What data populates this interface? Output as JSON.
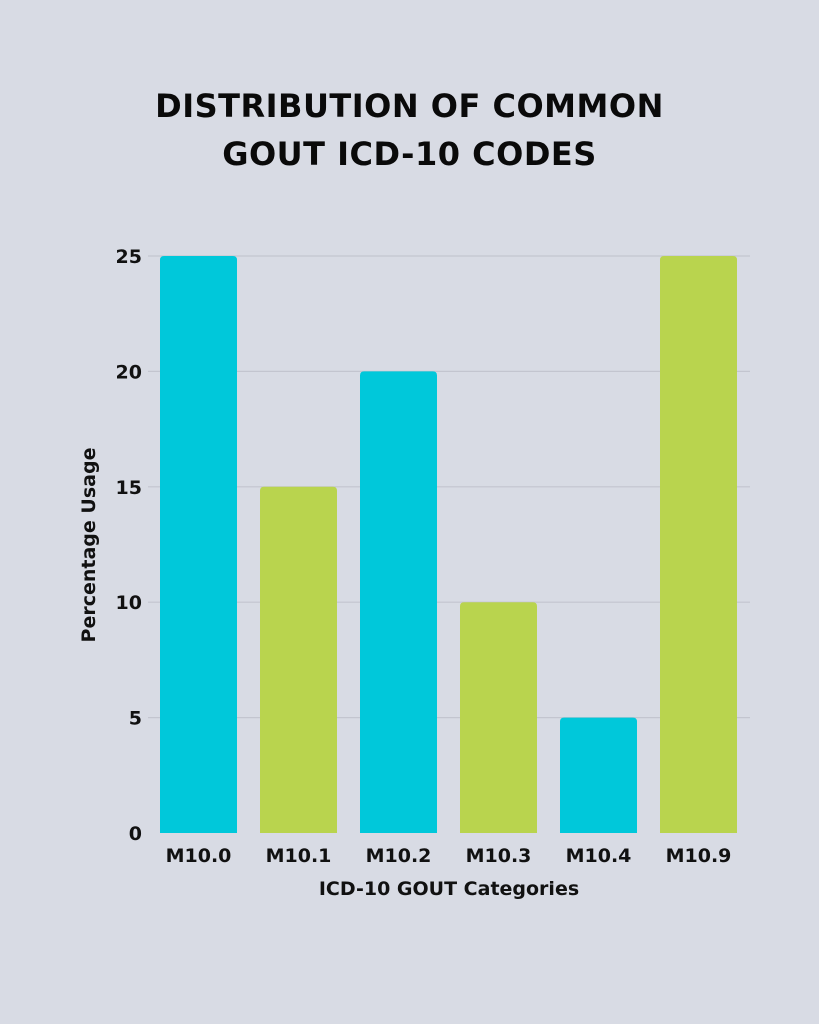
{
  "chart_data": {
    "type": "bar",
    "title_lines": [
      "DISTRIBUTION OF COMMON",
      "GOUT ICD-10 CODES"
    ],
    "xlabel": "ICD-10 GOUT Categories",
    "ylabel": "Percentage Usage",
    "categories": [
      "M10.0",
      "M10.1",
      "M10.2",
      "M10.3",
      "M10.4",
      "M10.9"
    ],
    "values": [
      25,
      15,
      20,
      10,
      5,
      25
    ],
    "bar_colors": [
      "#00c8da",
      "#b9d44e",
      "#00c8da",
      "#b9d44e",
      "#00c8da",
      "#b9d44e"
    ],
    "ylim": [
      0,
      25
    ],
    "yticks": [
      0,
      5,
      10,
      15,
      20,
      25
    ],
    "grid": true,
    "grid_color": "#c3c5cf",
    "background": "#d8dbe4"
  }
}
